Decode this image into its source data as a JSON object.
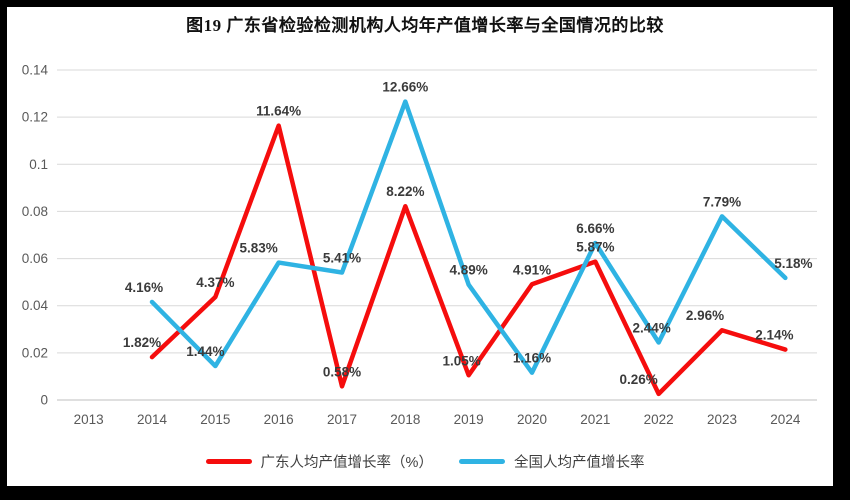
{
  "title": "图19  广东省检验检测机构人均年产值增长率与全国情况的比较",
  "chart_data": {
    "type": "line",
    "title": "图19  广东省检验检测机构人均年产值增长率与全国情况的比较",
    "categories": [
      "2013",
      "2014",
      "2015",
      "2016",
      "2017",
      "2018",
      "2019",
      "2020",
      "2021",
      "2022",
      "2023",
      "2024"
    ],
    "series": [
      {
        "name": "广东人均产值增长率（%）",
        "color": "#f50d0d",
        "start_index": 1,
        "values": [
          1.82,
          4.37,
          11.64,
          0.58,
          8.22,
          1.05,
          4.91,
          5.87,
          0.26,
          2.96,
          2.14
        ],
        "labels": [
          "1.82%",
          "4.37%",
          "11.64%",
          "0.58%",
          "8.22%",
          "1.05%",
          "4.91%",
          "5.87%",
          "0.26%",
          "2.96%",
          "2.14%"
        ],
        "label_dx": [
          -10,
          0,
          0,
          0,
          0,
          -7,
          0,
          0,
          -20,
          -17,
          -11
        ]
      },
      {
        "name": "全国人均产值增长率",
        "color": "#2fb3e3",
        "start_index": 1,
        "values": [
          4.16,
          1.44,
          5.83,
          5.41,
          12.66,
          4.89,
          1.16,
          6.66,
          2.44,
          7.79,
          5.18
        ],
        "labels": [
          "4.16%",
          "1.44%",
          "5.83%",
          "5.41%",
          "12.66%",
          "4.89%",
          "1.16%",
          "6.66%",
          "2.44%",
          "7.79%",
          "5.18%"
        ],
        "label_dx": [
          -8,
          -10,
          -20,
          0,
          0,
          0,
          0,
          0,
          -7,
          0,
          8
        ]
      }
    ],
    "y_axis": {
      "min": 0,
      "max": 0.14,
      "step": 0.02,
      "ticks": [
        "0",
        "0.02",
        "0.04",
        "0.06",
        "0.08",
        "0.1",
        "0.12",
        "0.14"
      ],
      "note": "series values are percentages plotted against fractional axis"
    },
    "grid": true,
    "legend_position": "bottom",
    "xlabel": "",
    "ylabel": ""
  },
  "colors": {
    "frame": "#000000",
    "plot_background": "#ffffff",
    "gridline": "#d9d9d9",
    "baseline": "#bfbfbf",
    "axis_text": "#595959",
    "data_label_text": "#3b3b3b",
    "series_guangdong": "#f50d0d",
    "series_national": "#2fb3e3"
  }
}
